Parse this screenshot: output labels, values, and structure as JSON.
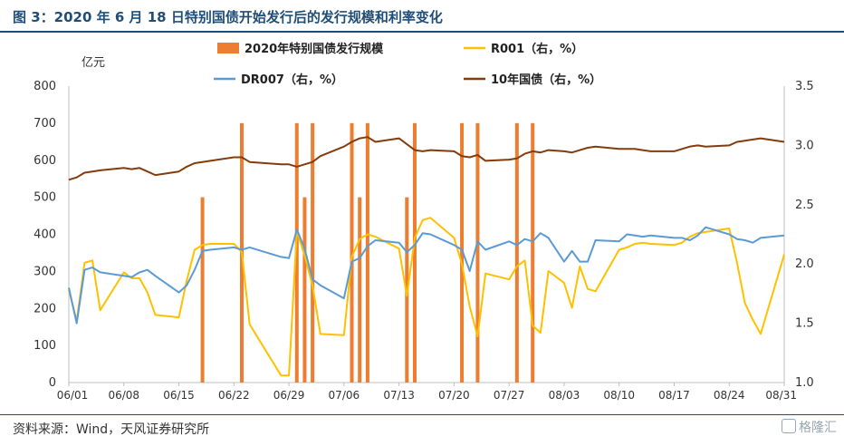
{
  "header": {
    "title": "图 3：2020 年 6 月 18 日特别国债开始发行后的发行规模和利率变化"
  },
  "footer": {
    "source": "资料来源：Wind，天风证券研究所",
    "watermark": "格隆汇"
  },
  "colors": {
    "bars": "#ed7d31",
    "r001": "#ffc000",
    "dr007": "#5b9bd5",
    "cgb10": "#843c0c"
  },
  "chart_data": {
    "type": "bar+line",
    "y_left_unit": "亿元",
    "y_left_lim": [
      0,
      800
    ],
    "y_left_ticks": [
      0,
      100,
      200,
      300,
      400,
      500,
      600,
      700,
      800
    ],
    "y_right_lim": [
      1.0,
      3.5
    ],
    "y_right_ticks": [
      "1.0",
      "1.5",
      "2.0",
      "2.5",
      "3.0",
      "3.5"
    ],
    "x_range": [
      "2020-06-01",
      "2020-08-31"
    ],
    "x_ticks": [
      {
        "date": "2020-06-01",
        "label": "06/01"
      },
      {
        "date": "2020-06-08",
        "label": "06/08"
      },
      {
        "date": "2020-06-15",
        "label": "06/15"
      },
      {
        "date": "2020-06-22",
        "label": "06/22"
      },
      {
        "date": "2020-06-29",
        "label": "06/29"
      },
      {
        "date": "2020-07-06",
        "label": "07/06"
      },
      {
        "date": "2020-07-13",
        "label": "07/13"
      },
      {
        "date": "2020-07-20",
        "label": "07/20"
      },
      {
        "date": "2020-07-27",
        "label": "07/27"
      },
      {
        "date": "2020-08-03",
        "label": "08/03"
      },
      {
        "date": "2020-08-10",
        "label": "08/10"
      },
      {
        "date": "2020-08-17",
        "label": "08/17"
      },
      {
        "date": "2020-08-24",
        "label": "08/24"
      },
      {
        "date": "2020-08-31",
        "label": "08/31"
      }
    ],
    "legend": [
      {
        "key": "bars",
        "label": "2020年特别国债发行规模"
      },
      {
        "key": "r001",
        "label": "R001（右，%）"
      },
      {
        "key": "dr007",
        "label": "DR007（右，%）"
      },
      {
        "key": "cgb10",
        "label": "10年国债（右，%）"
      }
    ],
    "bars": [
      {
        "date": "2020-06-18",
        "value": 500
      },
      {
        "date": "2020-06-23",
        "value": 700
      },
      {
        "date": "2020-06-30",
        "value": 700
      },
      {
        "date": "2020-07-01",
        "value": 500
      },
      {
        "date": "2020-07-02",
        "value": 700
      },
      {
        "date": "2020-07-07",
        "value": 700
      },
      {
        "date": "2020-07-08",
        "value": 500
      },
      {
        "date": "2020-07-09",
        "value": 700
      },
      {
        "date": "2020-07-14",
        "value": 500
      },
      {
        "date": "2020-07-15",
        "value": 700
      },
      {
        "date": "2020-07-21",
        "value": 700
      },
      {
        "date": "2020-07-23",
        "value": 700
      },
      {
        "date": "2020-07-28",
        "value": 700
      },
      {
        "date": "2020-07-30",
        "value": 700
      }
    ],
    "series": [
      {
        "key": "r001",
        "axis": "right",
        "points": [
          [
            "2020-06-01",
            1.78
          ],
          [
            "2020-06-02",
            1.52
          ],
          [
            "2020-06-03",
            2.01
          ],
          [
            "2020-06-04",
            2.03
          ],
          [
            "2020-06-05",
            1.61
          ],
          [
            "2020-06-08",
            1.93
          ],
          [
            "2020-06-09",
            1.88
          ],
          [
            "2020-06-10",
            1.88
          ],
          [
            "2020-06-11",
            1.76
          ],
          [
            "2020-06-12",
            1.57
          ],
          [
            "2020-06-15",
            1.55
          ],
          [
            "2020-06-16",
            1.86
          ],
          [
            "2020-06-17",
            2.12
          ],
          [
            "2020-06-18",
            2.16
          ],
          [
            "2020-06-19",
            2.17
          ],
          [
            "2020-06-22",
            2.17
          ],
          [
            "2020-06-23",
            2.1
          ],
          [
            "2020-06-24",
            1.49
          ],
          [
            "2020-06-28",
            1.06
          ],
          [
            "2020-06-29",
            1.06
          ],
          [
            "2020-06-30",
            2.28
          ],
          [
            "2020-07-01",
            2.07
          ],
          [
            "2020-07-02",
            1.82
          ],
          [
            "2020-07-03",
            1.41
          ],
          [
            "2020-07-06",
            1.4
          ],
          [
            "2020-07-07",
            2.06
          ],
          [
            "2020-07-08",
            2.21
          ],
          [
            "2020-07-09",
            2.25
          ],
          [
            "2020-07-10",
            2.23
          ],
          [
            "2020-07-13",
            2.13
          ],
          [
            "2020-07-14",
            1.73
          ],
          [
            "2020-07-15",
            2.22
          ],
          [
            "2020-07-16",
            2.37
          ],
          [
            "2020-07-17",
            2.39
          ],
          [
            "2020-07-20",
            2.22
          ],
          [
            "2020-07-21",
            2.0
          ],
          [
            "2020-07-22",
            1.64
          ],
          [
            "2020-07-23",
            1.39
          ],
          [
            "2020-07-24",
            1.92
          ],
          [
            "2020-07-27",
            1.87
          ],
          [
            "2020-07-28",
            1.98
          ],
          [
            "2020-07-29",
            2.03
          ],
          [
            "2020-07-30",
            1.48
          ],
          [
            "2020-07-31",
            1.42
          ],
          [
            "2020-08-01",
            1.94
          ],
          [
            "2020-08-03",
            1.84
          ],
          [
            "2020-08-04",
            1.63
          ],
          [
            "2020-08-05",
            1.98
          ],
          [
            "2020-08-06",
            1.79
          ],
          [
            "2020-08-07",
            1.77
          ],
          [
            "2020-08-10",
            2.12
          ],
          [
            "2020-08-11",
            2.14
          ],
          [
            "2020-08-12",
            2.17
          ],
          [
            "2020-08-13",
            2.18
          ],
          [
            "2020-08-14",
            2.17
          ],
          [
            "2020-08-17",
            2.16
          ],
          [
            "2020-08-18",
            2.18
          ],
          [
            "2020-08-19",
            2.23
          ],
          [
            "2020-08-20",
            2.26
          ],
          [
            "2020-08-21",
            2.27
          ],
          [
            "2020-08-24",
            2.3
          ],
          [
            "2020-08-25",
            2.01
          ],
          [
            "2020-08-26",
            1.67
          ],
          [
            "2020-08-27",
            1.53
          ],
          [
            "2020-08-28",
            1.41
          ],
          [
            "2020-08-31",
            2.08
          ]
        ]
      },
      {
        "key": "dr007",
        "axis": "right",
        "points": [
          [
            "2020-06-01",
            1.8
          ],
          [
            "2020-06-02",
            1.5
          ],
          [
            "2020-06-03",
            1.95
          ],
          [
            "2020-06-04",
            1.97
          ],
          [
            "2020-06-05",
            1.93
          ],
          [
            "2020-06-08",
            1.9
          ],
          [
            "2020-06-09",
            1.89
          ],
          [
            "2020-06-10",
            1.93
          ],
          [
            "2020-06-11",
            1.95
          ],
          [
            "2020-06-12",
            1.9
          ],
          [
            "2020-06-15",
            1.76
          ],
          [
            "2020-06-16",
            1.82
          ],
          [
            "2020-06-17",
            1.95
          ],
          [
            "2020-06-18",
            2.11
          ],
          [
            "2020-06-19",
            2.12
          ],
          [
            "2020-06-22",
            2.14
          ],
          [
            "2020-06-23",
            2.12
          ],
          [
            "2020-06-24",
            2.14
          ],
          [
            "2020-06-28",
            2.06
          ],
          [
            "2020-06-29",
            2.05
          ],
          [
            "2020-06-30",
            2.29
          ],
          [
            "2020-07-01",
            2.13
          ],
          [
            "2020-07-02",
            1.87
          ],
          [
            "2020-07-03",
            1.82
          ],
          [
            "2020-07-06",
            1.71
          ],
          [
            "2020-07-07",
            2.02
          ],
          [
            "2020-07-08",
            2.05
          ],
          [
            "2020-07-09",
            2.15
          ],
          [
            "2020-07-10",
            2.2
          ],
          [
            "2020-07-13",
            2.18
          ],
          [
            "2020-07-14",
            2.1
          ],
          [
            "2020-07-15",
            2.16
          ],
          [
            "2020-07-16",
            2.26
          ],
          [
            "2020-07-17",
            2.25
          ],
          [
            "2020-07-20",
            2.16
          ],
          [
            "2020-07-21",
            2.12
          ],
          [
            "2020-07-22",
            1.94
          ],
          [
            "2020-07-23",
            2.19
          ],
          [
            "2020-07-24",
            2.12
          ],
          [
            "2020-07-27",
            2.19
          ],
          [
            "2020-07-28",
            2.16
          ],
          [
            "2020-07-29",
            2.21
          ],
          [
            "2020-07-30",
            2.19
          ],
          [
            "2020-07-31",
            2.26
          ],
          [
            "2020-08-01",
            2.22
          ],
          [
            "2020-08-03",
            2.02
          ],
          [
            "2020-08-04",
            2.11
          ],
          [
            "2020-08-05",
            2.02
          ],
          [
            "2020-08-06",
            2.02
          ],
          [
            "2020-08-07",
            2.2
          ],
          [
            "2020-08-10",
            2.19
          ],
          [
            "2020-08-11",
            2.25
          ],
          [
            "2020-08-12",
            2.24
          ],
          [
            "2020-08-13",
            2.23
          ],
          [
            "2020-08-14",
            2.24
          ],
          [
            "2020-08-17",
            2.22
          ],
          [
            "2020-08-18",
            2.22
          ],
          [
            "2020-08-19",
            2.2
          ],
          [
            "2020-08-20",
            2.24
          ],
          [
            "2020-08-21",
            2.31
          ],
          [
            "2020-08-24",
            2.25
          ],
          [
            "2020-08-25",
            2.21
          ],
          [
            "2020-08-26",
            2.2
          ],
          [
            "2020-08-27",
            2.18
          ],
          [
            "2020-08-28",
            2.22
          ],
          [
            "2020-08-31",
            2.24
          ]
        ]
      },
      {
        "key": "cgb10",
        "axis": "right",
        "points": [
          [
            "2020-06-01",
            2.71
          ],
          [
            "2020-06-02",
            2.73
          ],
          [
            "2020-06-03",
            2.77
          ],
          [
            "2020-06-04",
            2.78
          ],
          [
            "2020-06-05",
            2.79
          ],
          [
            "2020-06-08",
            2.81
          ],
          [
            "2020-06-09",
            2.8
          ],
          [
            "2020-06-10",
            2.81
          ],
          [
            "2020-06-11",
            2.78
          ],
          [
            "2020-06-12",
            2.75
          ],
          [
            "2020-06-15",
            2.78
          ],
          [
            "2020-06-16",
            2.82
          ],
          [
            "2020-06-17",
            2.85
          ],
          [
            "2020-06-18",
            2.86
          ],
          [
            "2020-06-19",
            2.87
          ],
          [
            "2020-06-22",
            2.9
          ],
          [
            "2020-06-23",
            2.9
          ],
          [
            "2020-06-24",
            2.86
          ],
          [
            "2020-06-28",
            2.84
          ],
          [
            "2020-06-29",
            2.84
          ],
          [
            "2020-06-30",
            2.82
          ],
          [
            "2020-07-01",
            2.84
          ],
          [
            "2020-07-02",
            2.86
          ],
          [
            "2020-07-03",
            2.91
          ],
          [
            "2020-07-06",
            2.99
          ],
          [
            "2020-07-07",
            3.03
          ],
          [
            "2020-07-08",
            3.06
          ],
          [
            "2020-07-09",
            3.07
          ],
          [
            "2020-07-10",
            3.03
          ],
          [
            "2020-07-13",
            3.06
          ],
          [
            "2020-07-14",
            3.01
          ],
          [
            "2020-07-15",
            2.96
          ],
          [
            "2020-07-16",
            2.95
          ],
          [
            "2020-07-17",
            2.96
          ],
          [
            "2020-07-20",
            2.95
          ],
          [
            "2020-07-21",
            2.91
          ],
          [
            "2020-07-22",
            2.9
          ],
          [
            "2020-07-23",
            2.92
          ],
          [
            "2020-07-24",
            2.87
          ],
          [
            "2020-07-27",
            2.88
          ],
          [
            "2020-07-28",
            2.89
          ],
          [
            "2020-07-29",
            2.93
          ],
          [
            "2020-07-30",
            2.95
          ],
          [
            "2020-07-31",
            2.94
          ],
          [
            "2020-08-01",
            2.96
          ],
          [
            "2020-08-03",
            2.95
          ],
          [
            "2020-08-04",
            2.94
          ],
          [
            "2020-08-05",
            2.96
          ],
          [
            "2020-08-06",
            2.98
          ],
          [
            "2020-08-07",
            2.99
          ],
          [
            "2020-08-10",
            2.97
          ],
          [
            "2020-08-11",
            2.97
          ],
          [
            "2020-08-12",
            2.97
          ],
          [
            "2020-08-13",
            2.96
          ],
          [
            "2020-08-14",
            2.95
          ],
          [
            "2020-08-17",
            2.95
          ],
          [
            "2020-08-18",
            2.97
          ],
          [
            "2020-08-19",
            2.99
          ],
          [
            "2020-08-20",
            3.0
          ],
          [
            "2020-08-21",
            2.99
          ],
          [
            "2020-08-24",
            3.0
          ],
          [
            "2020-08-25",
            3.03
          ],
          [
            "2020-08-26",
            3.04
          ],
          [
            "2020-08-27",
            3.05
          ],
          [
            "2020-08-28",
            3.06
          ],
          [
            "2020-08-31",
            3.03
          ]
        ]
      }
    ]
  }
}
